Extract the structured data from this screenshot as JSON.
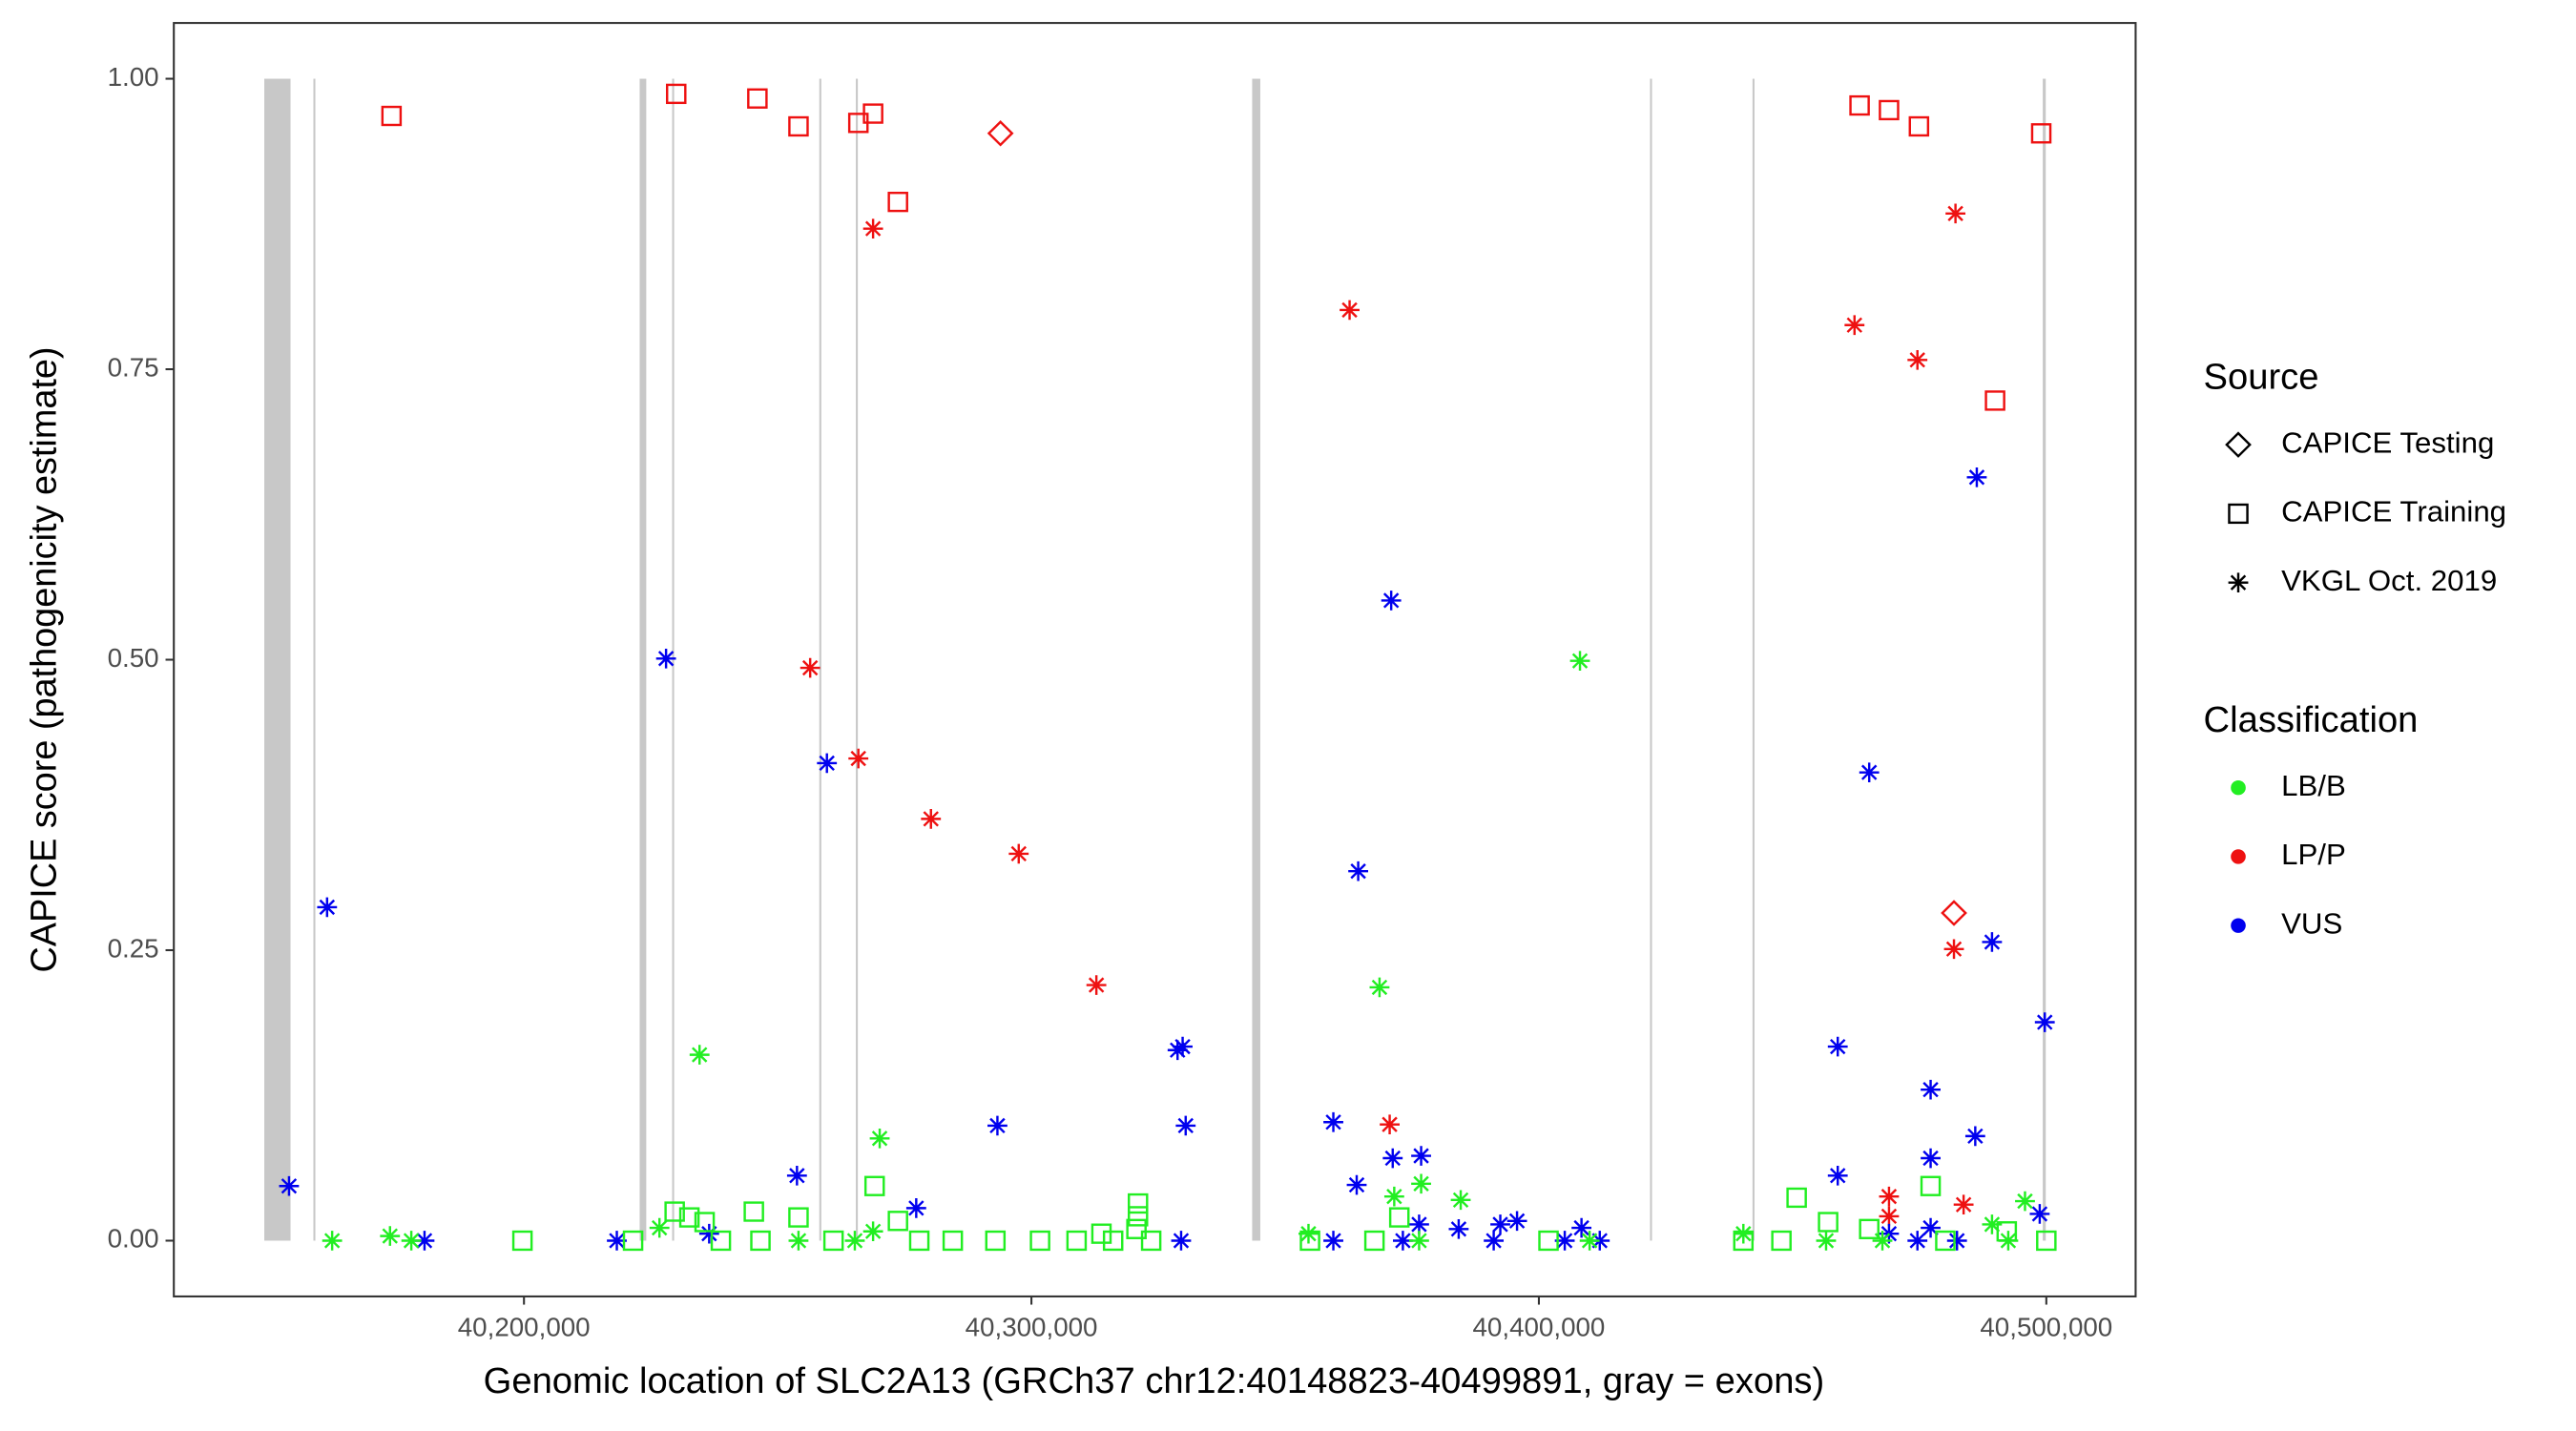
{
  "chart_data": {
    "type": "scatter",
    "x_label": "Genomic location of SLC2A13 (GRCh37 chr12:40148823-40499891, gray = exons)",
    "y_label": "CAPICE score (pathogenicity estimate)",
    "xlim": [
      40131000,
      40517600
    ],
    "ylim": [
      -0.048,
      1.048
    ],
    "xticks": [
      {
        "value": 40200000,
        "label": "40,200,000"
      },
      {
        "value": 40300000,
        "label": "40,300,000"
      },
      {
        "value": 40400000,
        "label": "40,400,000"
      },
      {
        "value": 40500000,
        "label": "40,500,000"
      }
    ],
    "yticks": [
      {
        "value": 0,
        "label": "0.00"
      },
      {
        "value": 0.25,
        "label": "0.25"
      },
      {
        "value": 0.5,
        "label": "0.50"
      },
      {
        "value": 0.75,
        "label": "0.75"
      },
      {
        "value": 1,
        "label": "1.00"
      }
    ],
    "grid": false,
    "exon_color": "#c8c8c8",
    "exons": [
      [
        40148823,
        40154000
      ],
      [
        40158500,
        40158700
      ],
      [
        40222800,
        40224100
      ],
      [
        40229200,
        40229500
      ],
      [
        40258200,
        40258500
      ],
      [
        40265400,
        40265700
      ],
      [
        40343500,
        40345100
      ],
      [
        40421900,
        40422200
      ],
      [
        40442100,
        40442400
      ],
      [
        40499300,
        40499891
      ]
    ],
    "source_legend": {
      "title": "Source",
      "items": [
        "CAPICE Testing",
        "CAPICE Training",
        "VKGL Oct. 2019"
      ],
      "shapes": [
        "diamond",
        "square",
        "asterisk"
      ]
    },
    "class_legend": {
      "title": "Classification",
      "items": [
        "LB/B",
        "LP/P",
        "VUS"
      ],
      "colors": [
        "#22ee22",
        "#ee1111",
        "#0000ee"
      ]
    },
    "series": [
      {
        "classification": "LP/P",
        "source": "CAPICE Training",
        "color": "#ee1111",
        "x": [
          40173900,
          40230000,
          40246000,
          40254100,
          40265900,
          40268800,
          40273700,
          40463200,
          40469000,
          40474900,
          40499000,
          40489900
        ],
        "y": [
          0.968,
          0.987,
          0.983,
          0.959,
          0.962,
          0.97,
          0.894,
          0.977,
          0.973,
          0.959,
          0.953,
          0.723
        ]
      },
      {
        "classification": "LP/P",
        "source": "CAPICE Testing",
        "color": "#ee1111",
        "x": [
          40293900,
          40481800
        ],
        "y": [
          0.953,
          0.282
        ]
      },
      {
        "classification": "LP/P",
        "source": "VKGL Oct. 2019",
        "color": "#ee1111",
        "x": [
          40268800,
          40256400,
          40265900,
          40280200,
          40297500,
          40312800,
          40362700,
          40370600,
          40482100,
          40462200,
          40474600,
          40481800,
          40469000,
          40469000,
          40483700
        ],
        "y": [
          0.871,
          0.493,
          0.415,
          0.363,
          0.333,
          0.22,
          0.801,
          0.1,
          0.884,
          0.788,
          0.758,
          0.251,
          0.038,
          0.021,
          0.031
        ]
      },
      {
        "classification": "VUS",
        "source": "VKGL Oct. 2019",
        "color": "#0000ee",
        "x": [
          40153700,
          40161200,
          40228000,
          40259700,
          40253800,
          40277300,
          40293300,
          40328800,
          40329800,
          40330400,
          40329500,
          40218300,
          40180400,
          40236500,
          40359500,
          40364400,
          40370900,
          40364100,
          40371200,
          40376800,
          40376400,
          40384200,
          40392400,
          40395700,
          40391100,
          40373200,
          40408400,
          40412000,
          40359500,
          40486000,
          40486300,
          40465100,
          40458900,
          40458900,
          40477200,
          40477200,
          40489300,
          40499700,
          40498700,
          40477200,
          40469000,
          40482400,
          40474600,
          40405100
        ],
        "y": [
          0.047,
          0.287,
          0.501,
          0.411,
          0.056,
          0.028,
          0.099,
          0.164,
          0.167,
          0.099,
          0,
          0,
          0,
          0.006,
          0.102,
          0.318,
          0.551,
          0.048,
          0.071,
          0.073,
          0.014,
          0.01,
          0.014,
          0.017,
          0,
          0,
          0.011,
          0,
          0,
          0.09,
          0.657,
          0.403,
          0.167,
          0.056,
          0.13,
          0.071,
          0.257,
          0.188,
          0.023,
          0.011,
          0.006,
          0,
          0,
          0
        ]
      },
      {
        "classification": "LB/B",
        "source": "VKGL Oct. 2019",
        "color": "#22ee22",
        "x": [
          40234600,
          40270100,
          40368600,
          40408100,
          40376800,
          40371500,
          40384600,
          40495800,
          40489300,
          40162200,
          40173600,
          40177800,
          40226700,
          40254100,
          40268800,
          40265200,
          40354600,
          40376400,
          40440300,
          40467700,
          40492500,
          40456600,
          40410000
        ],
        "y": [
          0.16,
          0.088,
          0.218,
          0.499,
          0.049,
          0.038,
          0.035,
          0.034,
          0.014,
          0,
          0.004,
          0,
          0.011,
          0,
          0.008,
          0,
          0.006,
          0,
          0.006,
          0,
          0,
          0,
          0
        ]
      },
      {
        "classification": "LB/B",
        "source": "CAPICE Training",
        "color": "#22ee22",
        "x": [
          40199700,
          40221500,
          40229700,
          40232600,
          40235600,
          40245300,
          40254100,
          40269100,
          40273700,
          40321000,
          40321000,
          40320700,
          40450800,
          40477200,
          40457000,
          40465100,
          40492200,
          40372500,
          40284500,
          40277900,
          40292900,
          40301700,
          40308900,
          40313800,
          40316100,
          40323600,
          40354900,
          40367600,
          40401900,
          40440300,
          40447800,
          40480100,
          40500000,
          40238800,
          40246600,
          40261000
        ],
        "y": [
          0,
          0,
          0.025,
          0.02,
          0.016,
          0.025,
          0.02,
          0.047,
          0.017,
          0.032,
          0.021,
          0.01,
          0.037,
          0.047,
          0.016,
          0.01,
          0.008,
          0.02,
          0,
          0,
          0,
          0,
          0,
          0.006,
          0,
          0,
          0,
          0,
          0,
          0,
          0,
          0,
          0,
          0,
          0,
          0
        ]
      }
    ]
  }
}
